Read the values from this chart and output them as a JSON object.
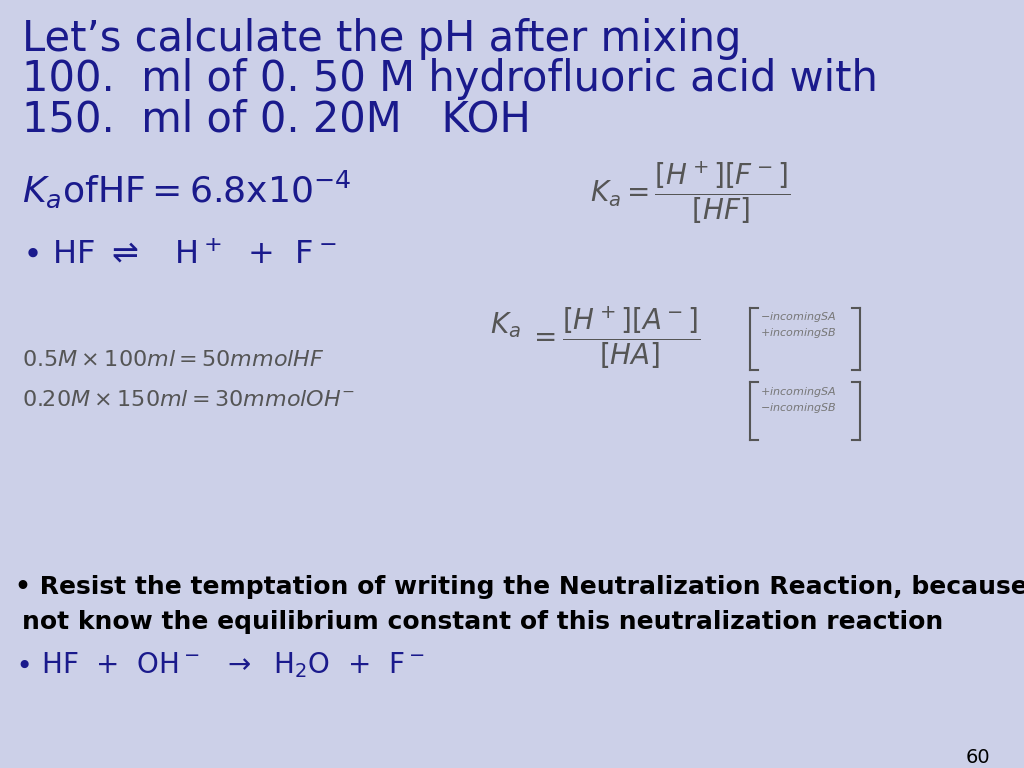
{
  "background_color": "#ccd0e8",
  "title_lines": [
    "Let’s calculate the pH after mixing",
    "100.  ml of 0. 50 M hydrofluoric acid with",
    "150.  ml of 0. 20M   KOH"
  ],
  "title_color": "#1a1a8c",
  "title_fontsize": 30,
  "ka_text_color": "#1a1a8c",
  "ka_fontsize": 26,
  "eq_color": "#1a1a8c",
  "eq_fontsize": 23,
  "calc_color": "#555555",
  "calc_fontsize": 16,
  "resist_color": "#000000",
  "resist_fontsize": 18,
  "hf_reaction_color": "#1a1a8c",
  "hf_reaction_fontsize": 20,
  "page_number": "60",
  "page_color": "#000000",
  "page_fontsize": 14,
  "formula1_color": "#555555",
  "formula2_color": "#555555"
}
